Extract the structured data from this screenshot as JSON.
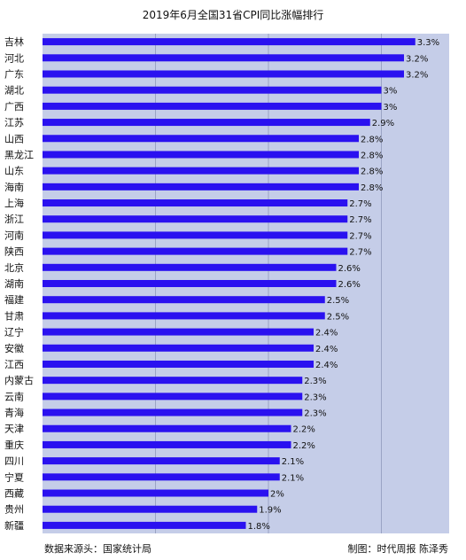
{
  "chart_data": {
    "type": "bar",
    "orientation": "horizontal",
    "title": "2019年6月全国31省CPI同比涨幅排行",
    "categories": [
      "吉林",
      "河北",
      "广东",
      "湖北",
      "广西",
      "江苏",
      "山西",
      "黑龙江",
      "山东",
      "海南",
      "上海",
      "浙江",
      "河南",
      "陕西",
      "北京",
      "湖南",
      "福建",
      "甘肃",
      "辽宁",
      "安徽",
      "江西",
      "内蒙古",
      "云南",
      "青海",
      "天津",
      "重庆",
      "四川",
      "宁夏",
      "西藏",
      "贵州",
      "新疆"
    ],
    "values": [
      3.3,
      3.2,
      3.2,
      3.0,
      3.0,
      2.9,
      2.8,
      2.8,
      2.8,
      2.8,
      2.7,
      2.7,
      2.7,
      2.7,
      2.6,
      2.6,
      2.5,
      2.5,
      2.4,
      2.4,
      2.4,
      2.3,
      2.3,
      2.3,
      2.2,
      2.2,
      2.1,
      2.1,
      2.0,
      1.9,
      1.8
    ],
    "value_labels": [
      "3.3%",
      "3.2%",
      "3.2%",
      "3%",
      "3%",
      "2.9%",
      "2.8%",
      "2.8%",
      "2.8%",
      "2.8%",
      "2.7%",
      "2.7%",
      "2.7%",
      "2.7%",
      "2.6%",
      "2.6%",
      "2.5%",
      "2.5%",
      "2.4%",
      "2.4%",
      "2.4%",
      "2.3%",
      "2.3%",
      "2.3%",
      "2.2%",
      "2.2%",
      "2.1%",
      "2.1%",
      "2%",
      "1.9%",
      "1.8%"
    ],
    "xlim": [
      0,
      3.6
    ],
    "grid": true,
    "colors": {
      "bar": "#2a11f0",
      "plot_background": "#c5cde8",
      "grid": "#9aa3c4"
    }
  },
  "footer": {
    "source": "数据来源头：国家统计局",
    "credit": "制图：时代周报 陈泽秀"
  }
}
